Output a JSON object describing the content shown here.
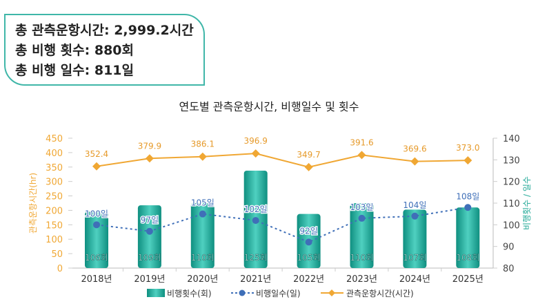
{
  "summary": {
    "line1": "총 관측운항시간: 2,999.2시간",
    "line2": "총 비행 횟수: 880회",
    "line3": "총 비행 일수: 811일"
  },
  "chart_data": {
    "type": "bar+line",
    "title": "연도별 관측운항시간, 비행일수 및 횟수",
    "categories": [
      "2018년",
      "2019년",
      "2020년",
      "2021년",
      "2022년",
      "2023년",
      "2024년",
      "2025년"
    ],
    "y_left": {
      "label": "관측운항시간(hr)",
      "range": [
        0,
        450
      ],
      "ticks": [
        0,
        50,
        100,
        150,
        200,
        250,
        300,
        350,
        400,
        450
      ]
    },
    "y_right": {
      "label": "비행횟수 / 일수",
      "range": [
        80,
        140
      ],
      "ticks": [
        80,
        90,
        100,
        110,
        120,
        130,
        140
      ]
    },
    "series": [
      {
        "name": "비행횟수(회)",
        "type": "bar",
        "axis": "right",
        "values": [
          106,
          109,
          110,
          125,
          105,
          110,
          107,
          108
        ],
        "labels": [
          "106회",
          "109회",
          "110회",
          "125회",
          "105회",
          "110회",
          "107회",
          "108회"
        ],
        "color": "#1fa896"
      },
      {
        "name": "비행일수(일)",
        "type": "line-dashed",
        "axis": "right",
        "values": [
          100,
          97,
          105,
          102,
          92,
          103,
          104,
          108
        ],
        "labels": [
          "100일",
          "97일",
          "105일",
          "102일",
          "92일",
          "103일",
          "104일",
          "108일"
        ],
        "color": "#3f6fb8"
      },
      {
        "name": "관측운항시간(시간)",
        "type": "line",
        "axis": "left",
        "values": [
          352.4,
          379.9,
          386.1,
          396.9,
          349.7,
          391.6,
          369.6,
          373.0
        ],
        "labels": [
          "352.4",
          "379.9",
          "386.1",
          "396.9",
          "349.7",
          "391.6",
          "369.6",
          "373.0"
        ],
        "color": "#f0a733"
      }
    ],
    "legend": "bottom"
  }
}
